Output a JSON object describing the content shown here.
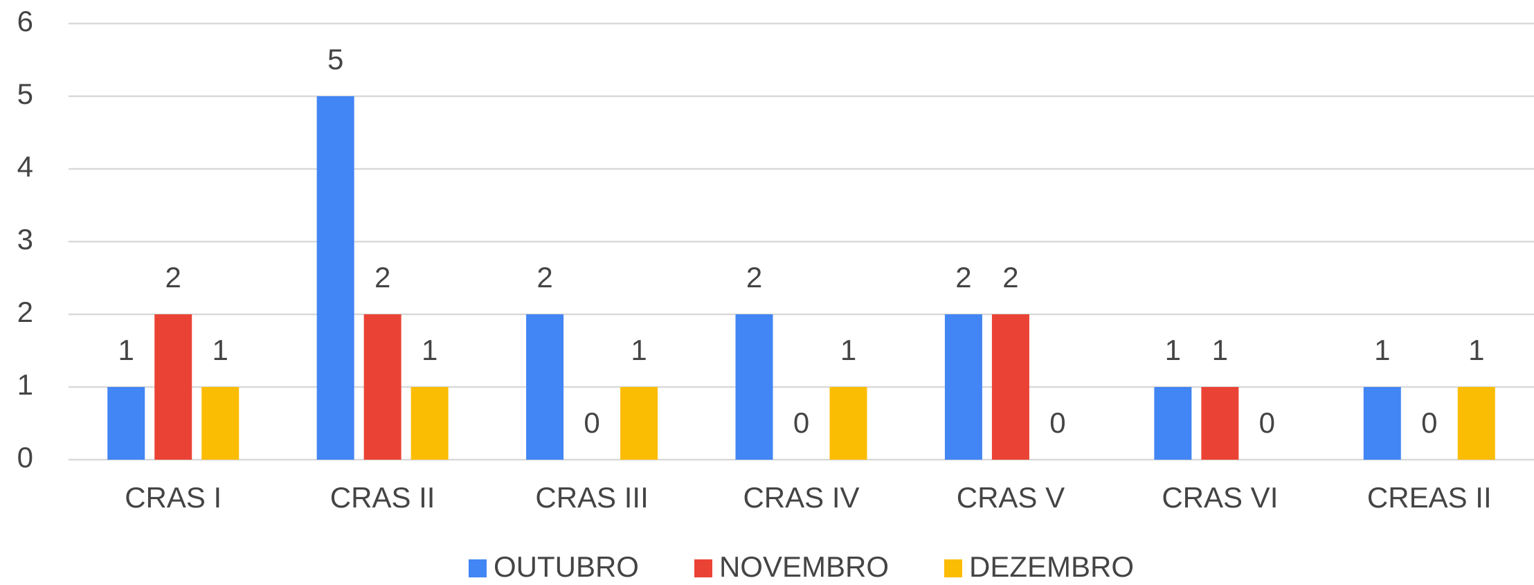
{
  "chart_data": {
    "type": "bar",
    "categories": [
      "CRAS I",
      "CRAS II",
      "CRAS III",
      "CRAS IV",
      "CRAS V",
      "CRAS VI",
      "CREAS II"
    ],
    "series": [
      {
        "name": "OUTUBRO",
        "color": "#4285f4",
        "values": [
          1,
          5,
          2,
          2,
          2,
          1,
          1
        ]
      },
      {
        "name": "NOVEMBRO",
        "color": "#ea4335",
        "values": [
          2,
          2,
          0,
          0,
          2,
          1,
          0
        ]
      },
      {
        "name": "DEZEMBRO",
        "color": "#fbbc04",
        "values": [
          1,
          1,
          1,
          1,
          0,
          0,
          1
        ]
      }
    ],
    "ylim": [
      0,
      6
    ],
    "yticks": [
      0,
      1,
      2,
      3,
      4,
      5,
      6
    ],
    "grid": true,
    "legend": "bottom"
  }
}
